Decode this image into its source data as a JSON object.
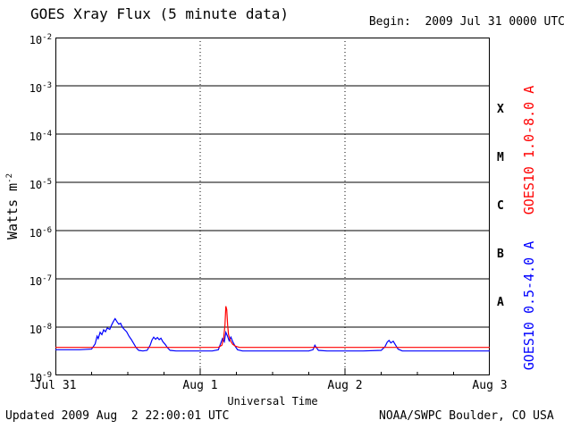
{
  "header": {
    "title": "GOES Xray Flux (5 minute data)",
    "begin_label": "Begin:  2009 Jul 31 0000 UTC"
  },
  "footer": {
    "updated": "Updated 2009 Aug  2 22:00:01 UTC",
    "credit": "NOAA/SWPC Boulder, CO USA"
  },
  "axes": {
    "y_label_base": "Watts m",
    "y_label_exponent": "-2",
    "y_tick_base": "10",
    "x_label": "Universal Time"
  },
  "colors": {
    "long_channel": "#ff0000",
    "short_channel": "#0000ff",
    "frame": "#000000",
    "background": "#ffffff"
  },
  "chart_data": {
    "type": "line",
    "title": "GOES Xray Flux (5 minute data)",
    "begin": "2009 Jul 31 0000 UTC",
    "updated": "2009 Aug 2 22:00:01 UTC",
    "source": "NOAA/SWPC Boulder, CO USA",
    "x_axis": {
      "label": "Universal Time",
      "unit": "hours since begin",
      "range": [
        0,
        72
      ],
      "ticks": [
        {
          "label": "Jul 31",
          "hour": 0
        },
        {
          "label": "Aug 1",
          "hour": 24
        },
        {
          "label": "Aug 2",
          "hour": 48
        },
        {
          "label": "Aug 3",
          "hour": 72
        }
      ],
      "minor_tick_hours": 6,
      "day_gridlines_hours": [
        24,
        48
      ]
    },
    "y_axis": {
      "label": "Watts m^-2",
      "scale": "log10",
      "tick_exponents": [
        -2,
        -3,
        -4,
        -5,
        -6,
        -7,
        -8,
        -9
      ],
      "grid": "solid horizontal line at each decade"
    },
    "flare_class_labels": [
      {
        "label": "X",
        "exponent_mid": -3.5
      },
      {
        "label": "M",
        "exponent_mid": -4.5
      },
      {
        "label": "C",
        "exponent_mid": -5.5
      },
      {
        "label": "B",
        "exponent_mid": -6.5
      },
      {
        "label": "A",
        "exponent_mid": -7.5
      }
    ],
    "series": [
      {
        "name": "GOES10 1.0-8.0 A",
        "color": "#ff0000",
        "points_hour_flux": [
          [
            0,
            3.8e-09
          ],
          [
            4,
            3.8e-09
          ],
          [
            8,
            3.8e-09
          ],
          [
            12,
            3.8e-09
          ],
          [
            16,
            3.8e-09
          ],
          [
            20,
            3.8e-09
          ],
          [
            24,
            3.8e-09
          ],
          [
            27.0,
            3.8e-09
          ],
          [
            27.6,
            4.2e-09
          ],
          [
            27.9,
            6e-09
          ],
          [
            28.1,
            1.1e-08
          ],
          [
            28.25,
            2.7e-08
          ],
          [
            28.4,
            2.3e-08
          ],
          [
            28.55,
            1.1e-08
          ],
          [
            28.7,
            7e-09
          ],
          [
            29.0,
            5.2e-09
          ],
          [
            29.4,
            4.4e-09
          ],
          [
            29.9,
            4e-09
          ],
          [
            30.5,
            3.8e-09
          ],
          [
            34,
            3.8e-09
          ],
          [
            38,
            3.8e-09
          ],
          [
            42,
            3.8e-09
          ],
          [
            46,
            3.8e-09
          ],
          [
            50,
            3.8e-09
          ],
          [
            54,
            3.8e-09
          ],
          [
            58,
            3.8e-09
          ],
          [
            62,
            3.8e-09
          ],
          [
            66,
            3.8e-09
          ],
          [
            70,
            3.8e-09
          ],
          [
            72,
            3.8e-09
          ]
        ]
      },
      {
        "name": "GOES10 0.5-4.0 A",
        "color": "#0000ff",
        "points_hour_flux": [
          [
            0,
            3.4e-09
          ],
          [
            2,
            3.4e-09
          ],
          [
            4,
            3.4e-09
          ],
          [
            6,
            3.5e-09
          ],
          [
            6.6,
            4.5e-09
          ],
          [
            6.9,
            6.5e-09
          ],
          [
            7.1,
            5.8e-09
          ],
          [
            7.4,
            7.8e-09
          ],
          [
            7.7,
            7e-09
          ],
          [
            8.0,
            8.8e-09
          ],
          [
            8.3,
            8e-09
          ],
          [
            8.6,
            9.6e-09
          ],
          [
            9.0,
            9e-09
          ],
          [
            9.3,
            1.1e-08
          ],
          [
            9.6,
            1.3e-08
          ],
          [
            9.9,
            1.5e-08
          ],
          [
            10.2,
            1.3e-08
          ],
          [
            10.5,
            1.15e-08
          ],
          [
            10.8,
            1.2e-08
          ],
          [
            11.1,
            1e-08
          ],
          [
            11.4,
            9e-09
          ],
          [
            11.8,
            8e-09
          ],
          [
            12.2,
            6.5e-09
          ],
          [
            12.6,
            5.5e-09
          ],
          [
            13.0,
            4.5e-09
          ],
          [
            13.4,
            3.7e-09
          ],
          [
            13.8,
            3.3e-09
          ],
          [
            14.5,
            3.2e-09
          ],
          [
            15.2,
            3.3e-09
          ],
          [
            15.7,
            4.2e-09
          ],
          [
            16.0,
            5.4e-09
          ],
          [
            16.3,
            6.2e-09
          ],
          [
            16.6,
            5.6e-09
          ],
          [
            16.9,
            6.1e-09
          ],
          [
            17.2,
            5.5e-09
          ],
          [
            17.5,
            5.9e-09
          ],
          [
            17.8,
            5e-09
          ],
          [
            18.2,
            4.4e-09
          ],
          [
            18.6,
            3.7e-09
          ],
          [
            19.0,
            3.3e-09
          ],
          [
            20,
            3.2e-09
          ],
          [
            22,
            3.2e-09
          ],
          [
            24,
            3.2e-09
          ],
          [
            26,
            3.2e-09
          ],
          [
            27.0,
            3.4e-09
          ],
          [
            27.4,
            4.6e-09
          ],
          [
            27.7,
            5.8e-09
          ],
          [
            28.0,
            5e-09
          ],
          [
            28.25,
            7.8e-09
          ],
          [
            28.5,
            6.6e-09
          ],
          [
            28.8,
            5.2e-09
          ],
          [
            29.1,
            6.2e-09
          ],
          [
            29.4,
            5e-09
          ],
          [
            29.8,
            4e-09
          ],
          [
            30.2,
            3.4e-09
          ],
          [
            31,
            3.2e-09
          ],
          [
            34,
            3.2e-09
          ],
          [
            38,
            3.2e-09
          ],
          [
            42,
            3.2e-09
          ],
          [
            42.7,
            3.4e-09
          ],
          [
            43.0,
            4.2e-09
          ],
          [
            43.3,
            3.7e-09
          ],
          [
            43.6,
            3.3e-09
          ],
          [
            45,
            3.2e-09
          ],
          [
            48,
            3.2e-09
          ],
          [
            51,
            3.2e-09
          ],
          [
            54,
            3.3e-09
          ],
          [
            54.6,
            3.9e-09
          ],
          [
            55.0,
            4.9e-09
          ],
          [
            55.3,
            5.3e-09
          ],
          [
            55.6,
            4.7e-09
          ],
          [
            56.0,
            5.1e-09
          ],
          [
            56.4,
            4.2e-09
          ],
          [
            56.8,
            3.5e-09
          ],
          [
            57.5,
            3.2e-09
          ],
          [
            60,
            3.2e-09
          ],
          [
            64,
            3.2e-09
          ],
          [
            68,
            3.2e-09
          ],
          [
            72,
            3.2e-09
          ]
        ]
      }
    ]
  }
}
